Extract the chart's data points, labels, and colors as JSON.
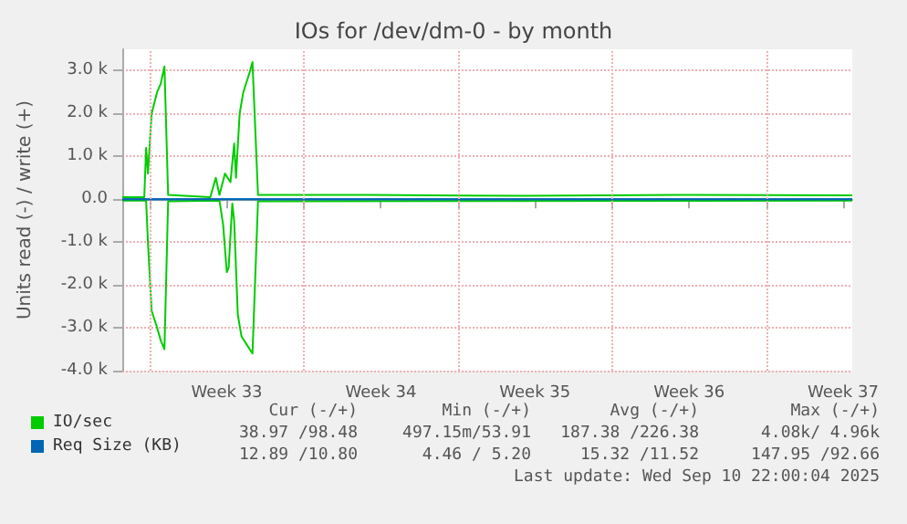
{
  "chart_data": {
    "type": "line",
    "title": "IOs for /dev/dm-0 - by month",
    "ylabel": "Units read (-) / write (+)",
    "xlim": [
      "2025-08-08T18:00",
      "2025-09-10T22:00"
    ],
    "xticks": [
      {
        "value": "2025-08-10T00:00",
        "label": null
      },
      {
        "value": "2025-08-13T12:00",
        "label": "Week 33"
      },
      {
        "value": "2025-08-17T00:00",
        "label": null
      },
      {
        "value": "2025-08-20T12:00",
        "label": "Week 34"
      },
      {
        "value": "2025-08-24T00:00",
        "label": null
      },
      {
        "value": "2025-08-27T12:00",
        "label": "Week 35"
      },
      {
        "value": "2025-08-31T00:00",
        "label": null
      },
      {
        "value": "2025-09-03T12:00",
        "label": "Week 36"
      },
      {
        "value": "2025-09-07T00:00",
        "label": null
      },
      {
        "value": "2025-09-10T12:00",
        "label": "Week 37"
      }
    ],
    "ylim": [
      -4000,
      3500
    ],
    "yticks": [
      {
        "value": -4000,
        "label": "-4.0 k"
      },
      {
        "value": -3000,
        "label": "-3.0 k"
      },
      {
        "value": -2000,
        "label": "-2.0 k"
      },
      {
        "value": -1000,
        "label": "-1.0 k"
      },
      {
        "value": 0,
        "label": "0.0"
      },
      {
        "value": 1000,
        "label": "1.0 k"
      },
      {
        "value": 2000,
        "label": "2.0 k"
      },
      {
        "value": 3000,
        "label": "3.0 k"
      }
    ],
    "grid": true,
    "legend": "bottom left",
    "marker": "none",
    "line_style": "solid",
    "series": [
      {
        "name": "IO/sec",
        "color": "#00cc00",
        "x": [
          "2025-08-08T18:00",
          "2025-08-09T18:00",
          "2025-08-09T20:00",
          "2025-08-09T22:00",
          "2025-08-10T02:00",
          "2025-08-10T08:00",
          "2025-08-10T12:00",
          "2025-08-10T16:00",
          "2025-08-10T20:00",
          "2025-08-12T18:00",
          "2025-08-13T00:00",
          "2025-08-13T04:00",
          "2025-08-13T10:00",
          "2025-08-13T16:00",
          "2025-08-13T20:00",
          "2025-08-13T22:00",
          "2025-08-14T02:00",
          "2025-08-14T06:00",
          "2025-08-14T12:00",
          "2025-08-14T16:00",
          "2025-08-14T22:00",
          "2025-08-20T00:00",
          "2025-08-27T00:00",
          "2025-09-03T00:00",
          "2025-09-10T22:00"
        ],
        "values": [
          50,
          50,
          1200,
          600,
          2000,
          2500,
          2700,
          3100,
          100,
          50,
          500,
          100,
          600,
          400,
          1300,
          500,
          2000,
          2500,
          2900,
          3200,
          100,
          100,
          80,
          100,
          90
        ]
      },
      {
        "color": "#00cc00",
        "x": [
          "2025-08-08T18:00",
          "2025-08-09T20:00",
          "2025-08-09T22:00",
          "2025-08-10T02:00",
          "2025-08-10T08:00",
          "2025-08-10T12:00",
          "2025-08-10T16:00",
          "2025-08-10T20:00",
          "2025-08-13T04:00",
          "2025-08-13T08:00",
          "2025-08-13T12:00",
          "2025-08-13T14:00",
          "2025-08-13T18:00",
          "2025-08-13T20:00",
          "2025-08-14T00:00",
          "2025-08-14T04:00",
          "2025-08-14T10:00",
          "2025-08-14T16:00",
          "2025-08-14T22:00",
          "2025-09-10T22:00"
        ],
        "values": [
          -30,
          -30,
          -1000,
          -2600,
          -3000,
          -3300,
          -3500,
          -50,
          -30,
          -600,
          -1700,
          -1600,
          -100,
          -500,
          -2700,
          -3200,
          -3400,
          -3600,
          -50,
          -30
        ]
      },
      {
        "name": "Req Size (KB)",
        "color": "#0066b3",
        "x": [
          "2025-08-08T18:00",
          "2025-09-10T22:00"
        ],
        "values": [
          0,
          0
        ]
      },
      {
        "color": "#0066b3",
        "x": [
          "2025-08-08T18:00",
          "2025-09-10T22:00"
        ],
        "values": [
          0,
          0
        ]
      }
    ],
    "annotations": [
      "Cur (-/+)",
      "Min (-/+)",
      "Avg (-/+)",
      "Max (-/+)",
      "38.97 /98.48",
      "497.15m/53.91",
      "187.38 /226.38",
      "4.08k/ 4.96k",
      "12.89 /10.80",
      "4.46 / 5.20",
      "15.32 /11.52",
      "147.95 /92.66",
      "Last update: Wed Sep 10 22:00:04 2025"
    ]
  }
}
